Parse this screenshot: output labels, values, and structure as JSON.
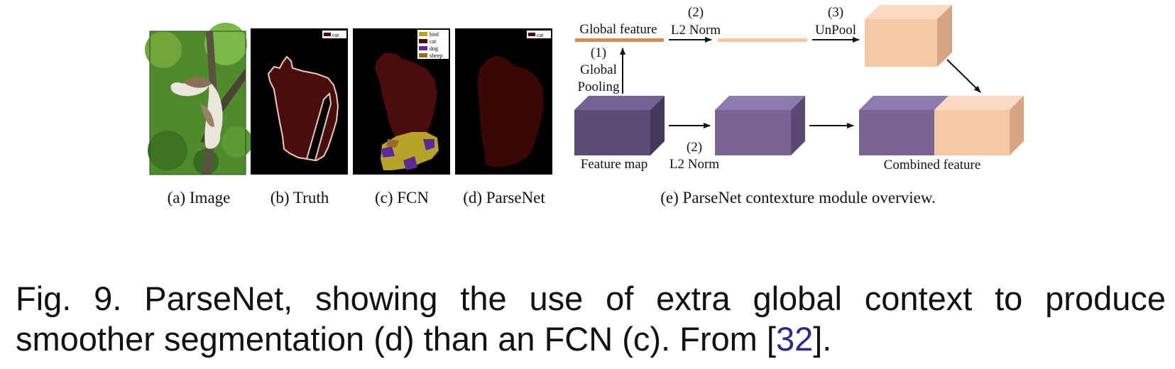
{
  "colors": {
    "cat": "#4a0d0d",
    "cat_dark": "#3a0606",
    "bird": "#b7a32a",
    "dog": "#5a2a9a",
    "sheep": "#9a6a28",
    "feature_map": "#5a4c74",
    "purple": "#7a6496",
    "peach": "#f7c8a6",
    "orange_bar": "#d48b56"
  },
  "panels": {
    "truth_legend": [
      "cat"
    ],
    "fcn_legend": [
      "bird",
      "cat",
      "dog",
      "sheep"
    ],
    "parsenet_legend": [
      "cat"
    ]
  },
  "subcaptions": {
    "a": "(a) Image",
    "b": "(b) Truth",
    "c": "(c) FCN",
    "d": "(d) ParseNet",
    "e": "(e) ParseNet contexture module overview."
  },
  "diagram": {
    "global_feature": "Global feature",
    "step1_num": "(1)",
    "step1_line1": "Global",
    "step1_line2": "Pooling",
    "step2_num": "(2)",
    "step2_label": "L2 Norm",
    "step2b_num": "(2)",
    "step2b_label": "L2 Norm",
    "step3_num": "(3)",
    "step3_label": "UnPool",
    "feature_map": "Feature map",
    "combined_feature": "Combined feature"
  },
  "caption": {
    "text": "Fig. 9. ParseNet, showing the use of extra global context to produce smoother segmentation (d) than an FCN (c). From [",
    "ref": "32",
    "end": "]."
  }
}
